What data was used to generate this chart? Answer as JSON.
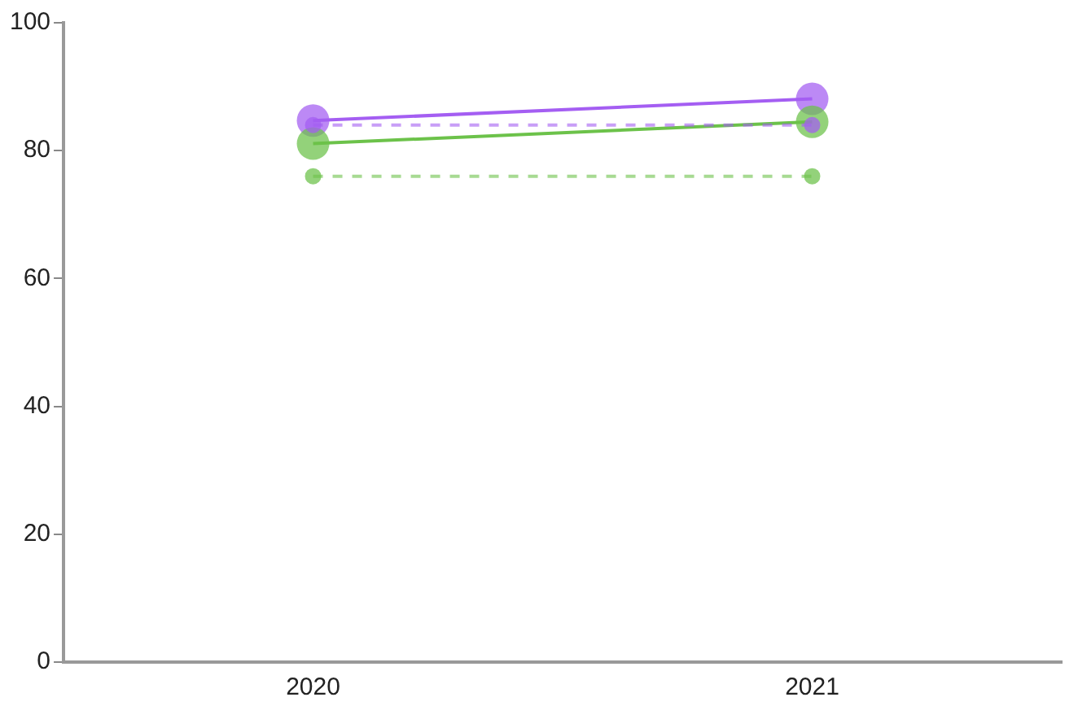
{
  "chart_data": {
    "type": "line",
    "categories": [
      "2020",
      "2021"
    ],
    "series": [
      {
        "color": "#6cc24a",
        "values": [
          76,
          76
        ],
        "line_style": "dashed"
      },
      {
        "color": "#6cc24a",
        "values": [
          81.1,
          84.5
        ],
        "line_style": "solid"
      },
      {
        "color": "#a45ef2",
        "values": [
          84,
          84
        ],
        "line_style": "dashed"
      },
      {
        "color": "#a45ef2",
        "values": [
          84.7,
          88.1
        ],
        "line_style": "solid"
      }
    ],
    "ylim": [
      0,
      100
    ],
    "yticks": [
      0,
      20,
      40,
      60,
      80,
      100
    ],
    "grid": false,
    "legend": false,
    "marker": "circle"
  }
}
